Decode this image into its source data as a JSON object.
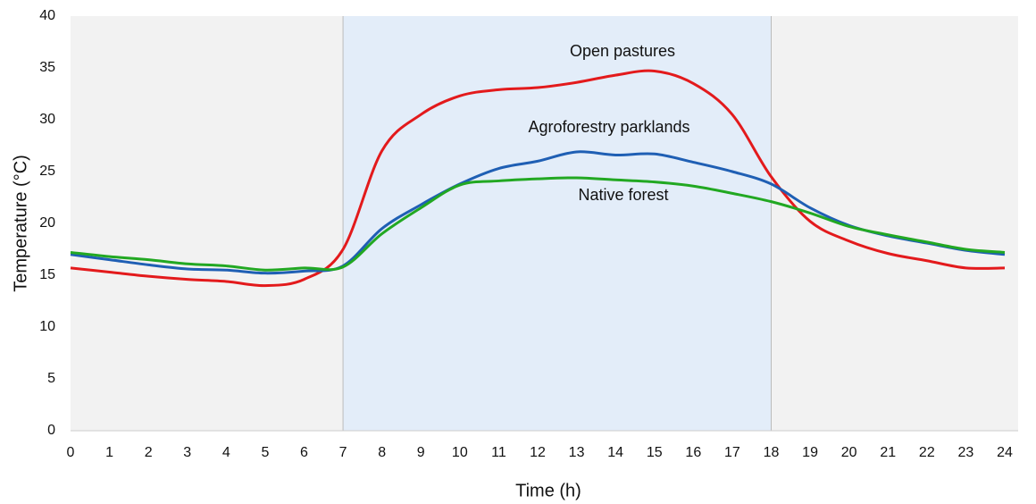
{
  "chart_data": {
    "type": "line",
    "x_label": "Time (h)",
    "y_label": "Temperature (°C)",
    "x": [
      0,
      1,
      2,
      3,
      4,
      5,
      6,
      7,
      8,
      9,
      10,
      11,
      12,
      13,
      14,
      15,
      16,
      17,
      18,
      19,
      20,
      21,
      22,
      23,
      24
    ],
    "series": [
      {
        "name": "Open pastures",
        "color": "#e31a1c",
        "values": [
          15.7,
          15.3,
          14.9,
          14.6,
          14.4,
          14.0,
          14.6,
          17.5,
          27.0,
          30.5,
          32.3,
          32.9,
          33.1,
          33.6,
          34.3,
          34.7,
          33.5,
          30.5,
          24.5,
          20.2,
          18.3,
          17.1,
          16.4,
          15.7,
          15.7
        ]
      },
      {
        "name": "Agroforestry parklands",
        "color": "#1f5fb4",
        "values": [
          17.0,
          16.5,
          16.0,
          15.6,
          15.5,
          15.2,
          15.4,
          15.9,
          19.5,
          21.8,
          23.8,
          25.3,
          26.0,
          26.9,
          26.6,
          26.7,
          25.9,
          25.0,
          23.8,
          21.5,
          19.8,
          18.8,
          18.1,
          17.4,
          17.0
        ]
      },
      {
        "name": "Native forest",
        "color": "#22a822",
        "values": [
          17.2,
          16.8,
          16.5,
          16.1,
          15.9,
          15.5,
          15.7,
          15.8,
          19.0,
          21.5,
          23.7,
          24.1,
          24.3,
          24.4,
          24.2,
          24.0,
          23.6,
          22.9,
          22.1,
          21.0,
          19.7,
          18.9,
          18.2,
          17.5,
          17.2
        ]
      }
    ],
    "shaded_range": [
      7,
      18
    ],
    "xlim": [
      0,
      24
    ],
    "xticks": [
      0,
      1,
      2,
      3,
      4,
      5,
      6,
      7,
      8,
      9,
      10,
      11,
      12,
      13,
      14,
      15,
      16,
      17,
      18,
      19,
      20,
      21,
      22,
      23,
      24
    ],
    "ylim": [
      0,
      40
    ],
    "yticks": [
      0,
      5,
      10,
      15,
      20,
      25,
      30,
      35,
      40
    ]
  }
}
